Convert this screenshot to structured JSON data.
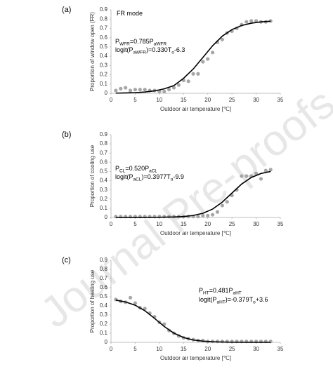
{
  "watermark": "Journal Pre-proofs",
  "chart_data": [
    {
      "type": "scatter",
      "panel_label": "(a)",
      "xlabel": "Outdoor air temperature [℃]",
      "ylabel": "Proportion of window open (FR)",
      "xlim": [
        0,
        35
      ],
      "ylim": [
        0,
        0.9
      ],
      "xticks": [
        0,
        5,
        10,
        15,
        20,
        25,
        30,
        35
      ],
      "yticks": [
        0,
        0.1,
        0.2,
        0.3,
        0.4,
        0.5,
        0.6,
        0.7,
        0.8,
        0.9
      ],
      "annotations": [
        [
          {
            "text": "FR mode",
            "sub": false
          }
        ],
        [
          {
            "text": "P",
            "sub": false
          },
          {
            "text": "WFR",
            "sub": true
          },
          {
            "text": "=0.785",
            "sub": false
          },
          {
            "text": "P",
            "sub": false
          },
          {
            "text": "aWFR",
            "sub": true
          }
        ],
        [
          {
            "text": "logit(P",
            "sub": false
          },
          {
            "text": "aWFR",
            "sub": true
          },
          {
            "text": ")=0.330",
            "sub": false
          },
          {
            "text": "T",
            "sub": false
          },
          {
            "text": "o",
            "sub": true
          },
          {
            "text": "-6.3",
            "sub": false
          }
        ]
      ],
      "series": [
        {
          "type": "scatter",
          "color": "#a6a6a6",
          "x": [
            1,
            2,
            3,
            4,
            5,
            6,
            7,
            8,
            9,
            10,
            11,
            12,
            13,
            14,
            15,
            16,
            17,
            18,
            19,
            20,
            21,
            22,
            23,
            24,
            25,
            26,
            27,
            28,
            29,
            30,
            31,
            32,
            33
          ],
          "values": [
            0.03,
            0.05,
            0.06,
            0.03,
            0.04,
            0.04,
            0.04,
            0.03,
            0.03,
            0.02,
            0.02,
            0.04,
            0.06,
            0.09,
            0.14,
            0.13,
            0.21,
            0.21,
            0.34,
            0.37,
            0.44,
            0.55,
            0.58,
            0.65,
            0.67,
            0.7,
            0.74,
            0.77,
            0.78,
            0.78,
            0.77,
            0.77,
            0.78
          ]
        },
        {
          "type": "line",
          "color": "#000000",
          "x": [
            1,
            3,
            5,
            7,
            9,
            11,
            13,
            15,
            17,
            19,
            21,
            23,
            25,
            27,
            29,
            31,
            33
          ],
          "values": [
            0.002,
            0.004,
            0.007,
            0.014,
            0.026,
            0.048,
            0.083,
            0.162,
            0.262,
            0.387,
            0.512,
            0.616,
            0.687,
            0.731,
            0.756,
            0.77,
            0.777
          ]
        }
      ]
    },
    {
      "type": "scatter",
      "panel_label": "(b)",
      "xlabel": "Outdoor air temperature [℃]",
      "ylabel": "Proportion of cooling use",
      "xlim": [
        0,
        35
      ],
      "ylim": [
        0,
        0.9
      ],
      "xticks": [
        0,
        5,
        10,
        15,
        20,
        25,
        30,
        35
      ],
      "yticks": [
        0,
        0.1,
        0.2,
        0.3,
        0.4,
        0.5,
        0.6,
        0.7,
        0.8,
        0.9
      ],
      "annotations": [
        [
          {
            "text": "P",
            "sub": false
          },
          {
            "text": "CL",
            "sub": true
          },
          {
            "text": "=0.520",
            "sub": false
          },
          {
            "text": "P",
            "sub": false
          },
          {
            "text": "aCL",
            "sub": true
          }
        ],
        [
          {
            "text": "logit(P",
            "sub": false
          },
          {
            "text": "aCL",
            "sub": true
          },
          {
            "text": ")=0.3977",
            "sub": false
          },
          {
            "text": "T",
            "sub": false
          },
          {
            "text": "o",
            "sub": true
          },
          {
            "text": "-9.9",
            "sub": false
          }
        ]
      ],
      "series": [
        {
          "type": "scatter",
          "color": "#a6a6a6",
          "x": [
            1,
            2,
            3,
            4,
            5,
            6,
            7,
            8,
            9,
            10,
            11,
            12,
            13,
            14,
            15,
            16,
            17,
            18,
            19,
            20,
            21,
            22,
            23,
            24,
            25,
            26,
            27,
            28,
            29,
            30,
            31,
            32,
            33
          ],
          "values": [
            0.01,
            0.01,
            0.01,
            0.01,
            0.01,
            0.01,
            0.01,
            0.01,
            0.01,
            0.01,
            0.01,
            0.01,
            0.01,
            0.01,
            0.01,
            0.01,
            0.01,
            0.01,
            0.02,
            0.02,
            0.03,
            0.06,
            0.13,
            0.17,
            0.24,
            0.3,
            0.45,
            0.45,
            0.45,
            0.48,
            0.42,
            0.51,
            0.52
          ]
        },
        {
          "type": "line",
          "color": "#000000",
          "x": [
            1,
            5,
            9,
            13,
            15,
            17,
            19,
            21,
            23,
            25,
            27,
            29,
            31,
            33
          ],
          "values": [
            0,
            0.0002,
            0.001,
            0.005,
            0.01,
            0.022,
            0.046,
            0.091,
            0.167,
            0.265,
            0.363,
            0.435,
            0.478,
            0.5
          ]
        }
      ]
    },
    {
      "type": "scatter",
      "panel_label": "(c)",
      "xlabel": "Outdoor air temperature [℃]",
      "ylabel": "Proportion of heating use",
      "xlim": [
        0,
        35
      ],
      "ylim": [
        0,
        0.9
      ],
      "xticks": [
        0,
        5,
        10,
        15,
        20,
        25,
        30,
        35
      ],
      "yticks": [
        0,
        0.1,
        0.2,
        0.3,
        0.4,
        0.5,
        0.6,
        0.7,
        0.8,
        0.9
      ],
      "annotations": [
        [
          {
            "text": "P",
            "sub": false
          },
          {
            "text": "HT",
            "sub": true
          },
          {
            "text": "=0.481",
            "sub": false
          },
          {
            "text": "P",
            "sub": false
          },
          {
            "text": "aHT",
            "sub": true
          }
        ],
        [
          {
            "text": "logit(P",
            "sub": false
          },
          {
            "text": "aHT",
            "sub": true
          },
          {
            "text": ")=-0.379",
            "sub": false
          },
          {
            "text": "T",
            "sub": false
          },
          {
            "text": "o",
            "sub": true
          },
          {
            "text": "+3.6",
            "sub": false
          }
        ]
      ],
      "series": [
        {
          "type": "scatter",
          "color": "#a6a6a6",
          "x": [
            1,
            2,
            3,
            4,
            5,
            6,
            7,
            8,
            9,
            10,
            11,
            12,
            13,
            14,
            15,
            16,
            17,
            18,
            19,
            20,
            21,
            22,
            23,
            24,
            25,
            26,
            27,
            28,
            29,
            30,
            31,
            32,
            33
          ],
          "values": [
            0.47,
            0.45,
            0.44,
            0.49,
            0.43,
            0.38,
            0.37,
            0.32,
            0.28,
            0.22,
            0.2,
            0.13,
            0.1,
            0.07,
            0.05,
            0.04,
            0.03,
            0.02,
            0.02,
            0.01,
            0.01,
            0.01,
            0.01,
            0.01,
            0.01,
            0.01,
            0.01,
            0.01,
            0.01,
            0.01,
            0.01,
            0.01,
            0.01
          ]
        },
        {
          "type": "line",
          "color": "#000000",
          "x": [
            1,
            3,
            5,
            7,
            9,
            11,
            13,
            15,
            17,
            19,
            21,
            25,
            29,
            33
          ],
          "values": [
            0.463,
            0.443,
            0.407,
            0.347,
            0.263,
            0.174,
            0.101,
            0.053,
            0.026,
            0.013,
            0.006,
            0.001,
            0,
            0
          ]
        }
      ]
    }
  ]
}
